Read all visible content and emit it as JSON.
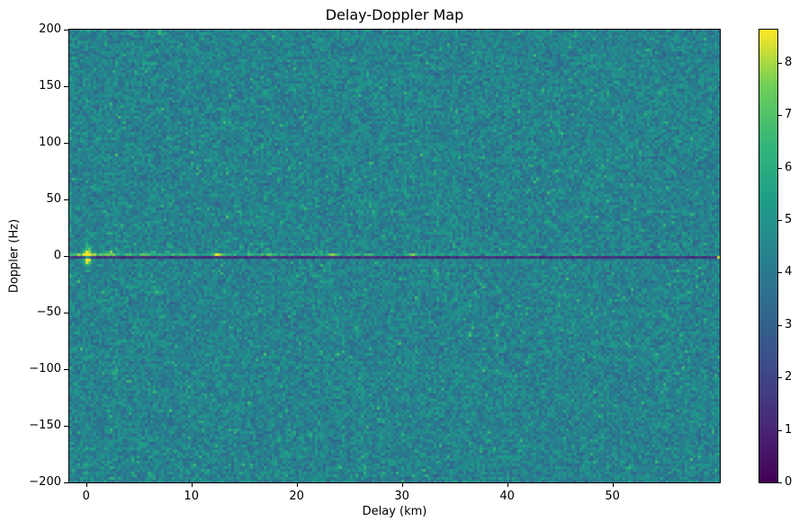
{
  "figure": {
    "background": "#ffffff"
  },
  "chart_data": {
    "type": "heatmap",
    "title": "Delay-Doppler Map",
    "xlabel": "Delay (km)",
    "ylabel": "Doppler (Hz)",
    "xlim": [
      -1.6,
      60.2
    ],
    "ylim": [
      -200,
      200
    ],
    "x_ticks": [
      0,
      10,
      20,
      30,
      40,
      50
    ],
    "x_tick_labels": [
      "0",
      "10",
      "20",
      "30",
      "40",
      "50"
    ],
    "y_ticks": [
      200,
      150,
      100,
      50,
      0,
      -50,
      -100,
      -150,
      -200
    ],
    "y_tick_labels": [
      "200",
      "150",
      "100",
      "50",
      "0",
      "−50",
      "−100",
      "−150",
      "−200"
    ],
    "grid": false,
    "colormap": "viridis",
    "colorbar": {
      "position": "right",
      "vmin": 0,
      "vmax": 8.63,
      "ticks": [
        0,
        1,
        2,
        3,
        4,
        5,
        6,
        7,
        8
      ],
      "tick_labels": [
        "0",
        "1",
        "2",
        "3",
        "4",
        "5",
        "6",
        "7",
        "8"
      ]
    },
    "background_noise": {
      "description": "uniform speckle noise over the whole map",
      "mean_value": 4.3,
      "min_value": 2.9,
      "max_value": 6.8
    },
    "features": {
      "zero_doppler_ridge": {
        "doppler_hz": 1,
        "description": "bright speckled horizontal ridge just above 0 Hz spanning all delays",
        "value_near_zero_delay": 7.5,
        "value_far_delay": 5.3
      },
      "null_line": {
        "doppler_hz": 0,
        "description": "thin dark horizontal line at exactly 0 Hz spanning all delays",
        "value": 1.4
      },
      "targets": [
        {
          "delay_km": 0,
          "doppler_hz": 0,
          "peak_value": 8.6,
          "note": "strongest return, vertical flare"
        },
        {
          "delay_km": 12.5,
          "doppler_hz": 0,
          "peak_value": 7.6
        },
        {
          "delay_km": 17.5,
          "doppler_hz": 0,
          "peak_value": 6.6
        },
        {
          "delay_km": 23.5,
          "doppler_hz": 0,
          "peak_value": 7.6
        },
        {
          "delay_km": 27,
          "doppler_hz": 0,
          "peak_value": 6.6
        },
        {
          "delay_km": 31,
          "doppler_hz": 0,
          "peak_value": 7.3
        },
        {
          "delay_km": 36,
          "doppler_hz": 0,
          "peak_value": 6.8
        },
        {
          "delay_km": 60,
          "doppler_hz": 0,
          "peak_value": 8.2,
          "note": "single bright pixel at right edge"
        }
      ]
    }
  }
}
